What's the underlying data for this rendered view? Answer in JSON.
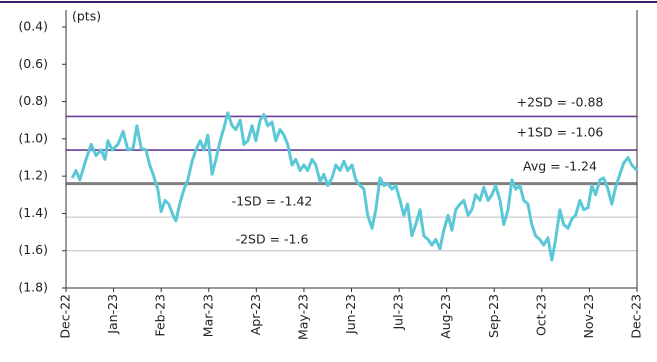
{
  "chart_data": {
    "type": "line",
    "y_label": "(pts)",
    "xlim": [
      0,
      12
    ],
    "xticks": [
      {
        "value": 0,
        "label": "Dec-22"
      },
      {
        "value": 1,
        "label": "Jan-23"
      },
      {
        "value": 2,
        "label": "Feb-23"
      },
      {
        "value": 3,
        "label": "Mar-23"
      },
      {
        "value": 4,
        "label": "Apr-23"
      },
      {
        "value": 5,
        "label": "May-23"
      },
      {
        "value": 6,
        "label": "Jun-23"
      },
      {
        "value": 7,
        "label": "Jul-23"
      },
      {
        "value": 8,
        "label": "Aug-23"
      },
      {
        "value": 9,
        "label": "Sep-23"
      },
      {
        "value": 10,
        "label": "Oct-23"
      },
      {
        "value": 11,
        "label": "Nov-23"
      },
      {
        "value": 12,
        "label": "Dec-23"
      }
    ],
    "ylim": [
      -1.8,
      -0.4
    ],
    "yticks": [
      {
        "value": -0.4,
        "label": "(0.4)"
      },
      {
        "value": -0.6,
        "label": "(0.6)"
      },
      {
        "value": -0.8,
        "label": "(0.8)"
      },
      {
        "value": -1.0,
        "label": "(1.0)"
      },
      {
        "value": -1.2,
        "label": "(1.2)"
      },
      {
        "value": -1.4,
        "label": "(1.4)"
      },
      {
        "value": -1.6,
        "label": "(1.6)"
      },
      {
        "value": -1.8,
        "label": "(1.8)"
      }
    ],
    "reference_lines": [
      {
        "label": "+2SD = -0.88",
        "value": -0.88,
        "color": "#6a3d9a"
      },
      {
        "label": "+1SD = -1.06",
        "value": -1.06,
        "color": "#6a3d9a"
      },
      {
        "label": "Avg = -1.24",
        "value": -1.24,
        "color": "#7f7f7f"
      },
      {
        "label": "-1SD = -1.42",
        "value": -1.42,
        "color": "#c0c0c0"
      },
      {
        "label": "-2SD = -1.6",
        "value": -1.6,
        "color": "#c0c0c0"
      }
    ],
    "series": [
      {
        "color": "#5bc8d8",
        "x": [
          0.13,
          0.21,
          0.29,
          0.42,
          0.53,
          0.63,
          0.74,
          0.82,
          0.88,
          0.97,
          1.09,
          1.2,
          1.3,
          1.41,
          1.49,
          1.58,
          1.68,
          1.76,
          1.83,
          1.93,
          2.0,
          2.08,
          2.16,
          2.25,
          2.31,
          2.39,
          2.48,
          2.56,
          2.65,
          2.73,
          2.82,
          2.9,
          2.98,
          3.07,
          3.15,
          3.24,
          3.32,
          3.4,
          3.49,
          3.57,
          3.66,
          3.74,
          3.82,
          3.91,
          3.99,
          4.08,
          4.16,
          4.24,
          4.33,
          4.41,
          4.5,
          4.58,
          4.66,
          4.75,
          4.83,
          4.92,
          5.0,
          5.08,
          5.17,
          5.25,
          5.34,
          5.42,
          5.5,
          5.59,
          5.67,
          5.76,
          5.84,
          5.92,
          6.01,
          6.09,
          6.18,
          6.26,
          6.34,
          6.43,
          6.51,
          6.6,
          6.68,
          6.76,
          6.85,
          6.93,
          7.02,
          7.1,
          7.18,
          7.27,
          7.35,
          7.44,
          7.52,
          7.61,
          7.69,
          7.77,
          7.86,
          7.94,
          8.03,
          8.11,
          8.19,
          8.28,
          8.36,
          8.45,
          8.53,
          8.61,
          8.7,
          8.78,
          8.87,
          8.95,
          9.03,
          9.12,
          9.2,
          9.29,
          9.37,
          9.45,
          9.54,
          9.62,
          9.71,
          9.79,
          9.87,
          9.96,
          10.04,
          10.13,
          10.21,
          10.29,
          10.38,
          10.46,
          10.55,
          10.63,
          10.71,
          10.8,
          10.88,
          10.97,
          11.05,
          11.13,
          11.22,
          11.3,
          11.39,
          11.47,
          11.55,
          11.64,
          11.72,
          11.81,
          11.89,
          12.0
        ],
        "values": [
          -1.21,
          -1.17,
          -1.22,
          -1.11,
          -1.03,
          -1.09,
          -1.06,
          -1.11,
          -1.01,
          -1.06,
          -1.03,
          -0.96,
          -1.06,
          -1.05,
          -0.93,
          -1.05,
          -1.06,
          -1.14,
          -1.19,
          -1.27,
          -1.39,
          -1.33,
          -1.35,
          -1.41,
          -1.44,
          -1.35,
          -1.27,
          -1.22,
          -1.12,
          -1.06,
          -1.01,
          -1.06,
          -0.98,
          -1.19,
          -1.11,
          -1.01,
          -0.94,
          -0.86,
          -0.93,
          -0.95,
          -0.9,
          -1.03,
          -1.01,
          -0.93,
          -1.01,
          -0.9,
          -0.87,
          -0.93,
          -0.91,
          -1.01,
          -0.95,
          -0.98,
          -1.03,
          -1.14,
          -1.11,
          -1.17,
          -1.14,
          -1.17,
          -1.11,
          -1.14,
          -1.23,
          -1.19,
          -1.25,
          -1.21,
          -1.14,
          -1.17,
          -1.12,
          -1.17,
          -1.14,
          -1.22,
          -1.25,
          -1.27,
          -1.41,
          -1.48,
          -1.38,
          -1.21,
          -1.25,
          -1.24,
          -1.27,
          -1.25,
          -1.33,
          -1.41,
          -1.35,
          -1.52,
          -1.46,
          -1.38,
          -1.52,
          -1.54,
          -1.57,
          -1.54,
          -1.59,
          -1.49,
          -1.41,
          -1.49,
          -1.38,
          -1.35,
          -1.33,
          -1.41,
          -1.38,
          -1.3,
          -1.33,
          -1.26,
          -1.33,
          -1.3,
          -1.25,
          -1.33,
          -1.46,
          -1.38,
          -1.22,
          -1.27,
          -1.25,
          -1.33,
          -1.35,
          -1.46,
          -1.52,
          -1.54,
          -1.57,
          -1.53,
          -1.65,
          -1.54,
          -1.38,
          -1.46,
          -1.48,
          -1.43,
          -1.41,
          -1.33,
          -1.38,
          -1.37,
          -1.25,
          -1.3,
          -1.22,
          -1.21,
          -1.27,
          -1.35,
          -1.26,
          -1.19,
          -1.13,
          -1.1,
          -1.14,
          -1.17
        ]
      }
    ]
  }
}
